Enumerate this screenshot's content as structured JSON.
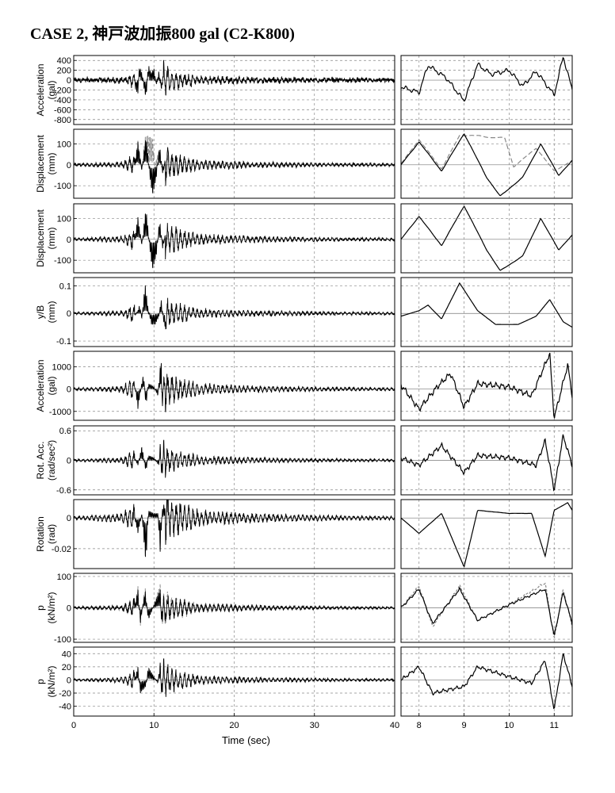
{
  "title": "CASE 2, 神戸波加振800 gal (C2-K800)",
  "chart_data": {
    "type": "line",
    "title": "CASE 2, 神戸波加振800 gal (C2-K800)",
    "xlabel": "Time (sec)",
    "full_view": {
      "xlim": [
        0,
        40
      ],
      "xticks": [
        0,
        10,
        20,
        30,
        40
      ]
    },
    "zoom_view": {
      "xlim": [
        7.6,
        11.4
      ],
      "xticks": [
        8,
        9,
        10,
        11
      ]
    },
    "grid": true,
    "panels": [
      {
        "ylabel": [
          "Acceleration",
          "(gal)"
        ],
        "ylim": [
          -900,
          500
        ],
        "yticks": [
          400,
          200,
          0,
          -200,
          -400,
          -600,
          -800
        ],
        "ytick_labels": [
          "400",
          "200",
          "0",
          "-200",
          "-400",
          "-600",
          "-800"
        ],
        "noise": 40,
        "zamp": 0.55,
        "zfreq": 1.6,
        "series": [
          {
            "color": "#000000",
            "points": [
              [
                7.0,
                30
              ],
              [
                8.0,
                -250
              ],
              [
                8.2,
                300
              ],
              [
                8.6,
                50
              ],
              [
                9.0,
                -420
              ],
              [
                9.3,
                320
              ],
              [
                9.6,
                120
              ],
              [
                10.0,
                200
              ],
              [
                10.3,
                -120
              ],
              [
                10.6,
                180
              ],
              [
                11.0,
                -300
              ],
              [
                11.2,
                480
              ],
              [
                11.4,
                -200
              ]
            ]
          }
        ]
      },
      {
        "ylabel": [
          "Displacement",
          "(mm)"
        ],
        "ylim": [
          -160,
          170
        ],
        "yticks": [
          100,
          0,
          -100
        ],
        "ytick_labels": [
          "100",
          "0",
          "-100"
        ],
        "noise": 3,
        "zamp": 0.08,
        "zfreq": 0.6,
        "series": [
          {
            "color": "#888888",
            "dash": "6,3",
            "points": [
              [
                7.6,
                5
              ],
              [
                8.0,
                120
              ],
              [
                8.5,
                -20
              ],
              [
                8.9,
                140
              ],
              [
                9.3,
                140
              ],
              [
                9.6,
                130
              ],
              [
                9.9,
                130
              ],
              [
                10.1,
                -10
              ],
              [
                10.6,
                80
              ],
              [
                11.0,
                -30
              ],
              [
                11.4,
                20
              ]
            ]
          },
          {
            "color": "#000000",
            "points": [
              [
                7.6,
                0
              ],
              [
                8.0,
                110
              ],
              [
                8.5,
                -30
              ],
              [
                9.0,
                150
              ],
              [
                9.5,
                -60
              ],
              [
                9.8,
                -150
              ],
              [
                10.3,
                -60
              ],
              [
                10.7,
                100
              ],
              [
                11.1,
                -50
              ],
              [
                11.4,
                20
              ]
            ]
          }
        ]
      },
      {
        "ylabel": [
          "Displacement",
          "(mm)"
        ],
        "ylim": [
          -160,
          170
        ],
        "yticks": [
          100,
          0,
          -100
        ],
        "ytick_labels": [
          "100",
          "0",
          "-100"
        ],
        "noise": 3,
        "zamp": 0.06,
        "zfreq": 0.6,
        "series": [
          {
            "color": "#000000",
            "points": [
              [
                7.6,
                0
              ],
              [
                8.0,
                110
              ],
              [
                8.5,
                -30
              ],
              [
                9.0,
                160
              ],
              [
                9.5,
                -50
              ],
              [
                9.8,
                -150
              ],
              [
                10.3,
                -80
              ],
              [
                10.7,
                100
              ],
              [
                11.1,
                -50
              ],
              [
                11.4,
                20
              ]
            ]
          }
        ]
      },
      {
        "ylabel": [
          "y/B",
          "(mm)"
        ],
        "ylim": [
          -0.12,
          0.13
        ],
        "yticks": [
          0.1,
          0,
          -0.1
        ],
        "ytick_labels": [
          "0.1",
          "0",
          "-0.1"
        ],
        "noise": 0.002,
        "zamp": 0.005,
        "zfreq": 0.8,
        "series": [
          {
            "color": "#000000",
            "points": [
              [
                7.6,
                -0.01
              ],
              [
                8.0,
                0.01
              ],
              [
                8.2,
                0.03
              ],
              [
                8.5,
                -0.02
              ],
              [
                8.9,
                0.11
              ],
              [
                9.3,
                0.01
              ],
              [
                9.7,
                -0.04
              ],
              [
                10.2,
                -0.04
              ],
              [
                10.6,
                -0.01
              ],
              [
                10.9,
                0.05
              ],
              [
                11.2,
                -0.03
              ],
              [
                11.4,
                -0.05
              ]
            ]
          }
        ]
      },
      {
        "ylabel": [
          "Acceleration",
          "(gal)"
        ],
        "ylim": [
          -1400,
          1700
        ],
        "yticks": [
          1000,
          0,
          -1000
        ],
        "ytick_labels": [
          "1000",
          "0",
          "-1000"
        ],
        "noise": 12,
        "zamp": 0.7,
        "zfreq": 2.4,
        "series": [
          {
            "color": "#000000",
            "points": [
              [
                7.6,
                200
              ],
              [
                8.0,
                -900
              ],
              [
                8.4,
                100
              ],
              [
                8.7,
                700
              ],
              [
                9.0,
                -800
              ],
              [
                9.3,
                250
              ],
              [
                10.0,
                100
              ],
              [
                10.5,
                -300
              ],
              [
                10.9,
                1600
              ],
              [
                11.0,
                -1300
              ],
              [
                11.3,
                1100
              ],
              [
                11.4,
                -300
              ]
            ]
          }
        ]
      },
      {
        "ylabel": [
          "Rot. Acc.",
          "(rad/sec²)"
        ],
        "ylim": [
          -0.7,
          0.7
        ],
        "yticks": [
          0.6,
          0,
          -0.6
        ],
        "ytick_labels": [
          "0.6",
          "0",
          "-0.6"
        ],
        "noise": 0.005,
        "zamp": 0.6,
        "zfreq": 2.4,
        "series": [
          {
            "color": "#000000",
            "points": [
              [
                7.6,
                0.05
              ],
              [
                8.0,
                -0.1
              ],
              [
                8.5,
                0.3
              ],
              [
                9.0,
                -0.25
              ],
              [
                9.3,
                0.1
              ],
              [
                10.0,
                0.05
              ],
              [
                10.6,
                -0.1
              ],
              [
                10.8,
                0.4
              ],
              [
                11.0,
                -0.6
              ],
              [
                11.2,
                0.5
              ],
              [
                11.4,
                -0.1
              ]
            ]
          }
        ]
      },
      {
        "ylabel": [
          "Rotation",
          "(rad)"
        ],
        "ylim": [
          -0.033,
          0.012
        ],
        "yticks": [
          0,
          -0.02
        ],
        "ytick_labels": [
          "0",
          "-0.02"
        ],
        "noise": 0.0001,
        "zamp": 0.02,
        "zfreq": 0.8,
        "series": [
          {
            "color": "#000000",
            "points": [
              [
                7.6,
                0
              ],
              [
                8.0,
                -0.01
              ],
              [
                8.5,
                0.003
              ],
              [
                9.0,
                -0.032
              ],
              [
                9.3,
                0.005
              ],
              [
                10.0,
                0.003
              ],
              [
                10.5,
                0.003
              ],
              [
                10.8,
                -0.025
              ],
              [
                11.0,
                0.005
              ],
              [
                11.3,
                0.01
              ],
              [
                11.4,
                0.005
              ]
            ]
          }
        ]
      },
      {
        "ylabel": [
          "p",
          "(kN/m²)"
        ],
        "ylim": [
          -110,
          110
        ],
        "yticks": [
          100,
          0,
          -100
        ],
        "ytick_labels": [
          "100",
          "0",
          "-100"
        ],
        "noise": 1,
        "zamp": 0.3,
        "zfreq": 2.0,
        "series": [
          {
            "color": "#888888",
            "dash": "3,2",
            "points": [
              [
                7.6,
                0
              ],
              [
                8.0,
                70
              ],
              [
                8.3,
                -60
              ],
              [
                8.9,
                70
              ],
              [
                9.3,
                -40
              ],
              [
                10.0,
                10
              ],
              [
                10.8,
                80
              ],
              [
                11.0,
                -100
              ],
              [
                11.2,
                60
              ],
              [
                11.4,
                -60
              ]
            ]
          },
          {
            "color": "#000000",
            "points": [
              [
                7.6,
                0
              ],
              [
                8.0,
                60
              ],
              [
                8.3,
                -50
              ],
              [
                8.9,
                60
              ],
              [
                9.3,
                -40
              ],
              [
                10.0,
                10
              ],
              [
                10.8,
                60
              ],
              [
                11.0,
                -90
              ],
              [
                11.2,
                50
              ],
              [
                11.4,
                -50
              ]
            ]
          }
        ]
      },
      {
        "ylabel": [
          "p",
          "(kN/m²)"
        ],
        "ylim": [
          -55,
          50
        ],
        "yticks": [
          40,
          20,
          0,
          -20,
          -40
        ],
        "ytick_labels": [
          "40",
          "20",
          "0",
          "-20",
          "-40"
        ],
        "noise": 0.3,
        "zamp": 0.45,
        "zfreq": 2.2,
        "series": [
          {
            "color": "#000000",
            "points": [
              [
                7.6,
                0
              ],
              [
                8.0,
                20
              ],
              [
                8.3,
                -20
              ],
              [
                9.0,
                -10
              ],
              [
                9.3,
                20
              ],
              [
                10.0,
                5
              ],
              [
                10.5,
                -5
              ],
              [
                10.8,
                30
              ],
              [
                11.0,
                -45
              ],
              [
                11.2,
                40
              ],
              [
                11.4,
                -10
              ]
            ]
          }
        ]
      }
    ]
  }
}
